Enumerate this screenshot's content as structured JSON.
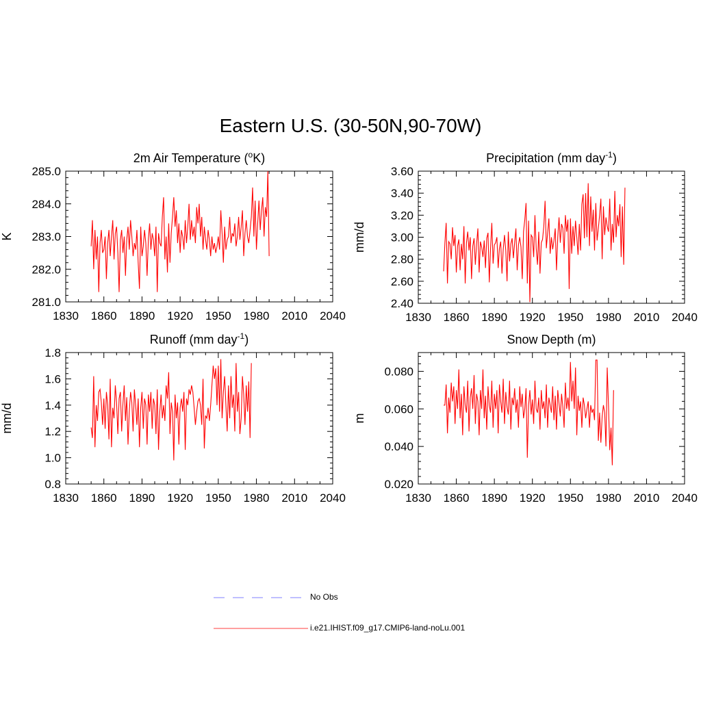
{
  "figure": {
    "title": "Eastern U.S. (30-50N,90-70W)"
  },
  "legend": {
    "items": [
      {
        "label": "No Obs",
        "color": "#9999ff",
        "style": "dashed"
      },
      {
        "label": "i.e21.IHIST.f09_g17.CMIP6-land-noLu.001",
        "color": "#ff6666",
        "style": "solid"
      }
    ]
  },
  "chart_data": [
    {
      "type": "line",
      "title": "2m Air Temperature (°K)",
      "title_main": "2m Air Temperature (",
      "title_sup": "o",
      "title_tail": "K)",
      "xlabel": "",
      "ylabel": "K",
      "xlim": [
        1830,
        2040
      ],
      "ylim": [
        281.0,
        285.0
      ],
      "xticks": [
        1830,
        1860,
        1890,
        1920,
        1950,
        1980,
        2010,
        2040
      ],
      "yticks": [
        281.0,
        282.0,
        283.0,
        284.0,
        285.0
      ],
      "ytick_labels": [
        "281.0",
        "282.0",
        "283.0",
        "284.0",
        "285.0"
      ],
      "grid": false,
      "series": [
        {
          "color": "#ff0000",
          "x_start": 1850,
          "x_step": 1,
          "values": [
            282.7,
            283.5,
            282.0,
            283.2,
            282.3,
            283.0,
            281.3,
            282.8,
            283.2,
            282.5,
            282.6,
            283.0,
            281.7,
            282.8,
            283.2,
            282.4,
            283.0,
            283.5,
            282.3,
            283.1,
            283.3,
            282.5,
            281.3,
            282.9,
            283.2,
            282.5,
            283.0,
            281.8,
            282.9,
            283.3,
            282.6,
            283.5,
            283.0,
            282.4,
            282.8,
            282.6,
            283.2,
            282.2,
            281.4,
            283.3,
            282.4,
            282.7,
            283.2,
            282.8,
            281.8,
            282.9,
            283.4,
            282.6,
            283.1,
            282.9,
            282.4,
            283.3,
            281.3,
            283.1,
            282.8,
            282.7,
            283.6,
            284.2,
            282.3,
            283.0,
            281.9,
            283.4,
            282.2,
            283.1,
            283.6,
            284.2,
            283.3,
            283.8,
            282.8,
            283.4,
            282.5,
            283.2,
            283.0,
            282.6,
            283.5,
            282.8,
            283.3,
            284.0,
            282.9,
            283.5,
            283.0,
            283.3,
            282.8,
            283.9,
            283.4,
            284.0,
            283.0,
            283.6,
            282.6,
            283.3,
            282.9,
            282.6,
            283.2,
            282.9,
            282.4,
            283.0,
            282.6,
            282.8,
            282.5,
            282.7,
            283.0,
            282.6,
            283.8,
            283.1,
            282.2,
            283.3,
            282.6,
            282.9,
            283.0,
            283.6,
            282.8,
            283.1,
            283.0,
            283.4,
            282.7,
            283.0,
            283.6,
            282.9,
            283.3,
            283.8,
            282.4,
            283.1,
            283.5,
            283.0,
            282.8,
            283.2,
            283.6,
            284.5,
            283.0,
            284.1,
            282.6,
            283.4,
            284.1,
            283.2,
            283.8,
            284.2,
            283.0,
            283.9,
            283.6,
            285.0,
            282.4
          ]
        }
      ]
    },
    {
      "type": "line",
      "title": "Precipitation (mm day-1)",
      "title_main": "Precipitation (mm day",
      "title_sup": "-1",
      "title_tail": ")",
      "xlabel": "",
      "ylabel": "mm/d",
      "xlim": [
        1830,
        2040
      ],
      "ylim": [
        2.4,
        3.6
      ],
      "xticks": [
        1830,
        1860,
        1890,
        1920,
        1950,
        1980,
        2010,
        2040
      ],
      "yticks": [
        2.4,
        2.6,
        2.8,
        3.0,
        3.2,
        3.4,
        3.6
      ],
      "ytick_labels": [
        "2.40",
        "2.60",
        "2.80",
        "3.00",
        "3.20",
        "3.40",
        "3.60"
      ],
      "grid": false,
      "series": [
        {
          "color": "#ff0000",
          "x_start": 1850,
          "x_step": 1,
          "values": [
            2.69,
            2.95,
            3.13,
            2.58,
            2.96,
            2.94,
            2.8,
            3.09,
            2.92,
            3.02,
            2.68,
            2.92,
            2.98,
            2.7,
            2.94,
            2.8,
            3.1,
            2.58,
            2.95,
            3.05,
            2.88,
            3.0,
            2.62,
            2.92,
            2.99,
            2.75,
            2.94,
            3.08,
            2.68,
            2.96,
            2.91,
            2.82,
            2.97,
            2.72,
            2.99,
            3.04,
            2.59,
            2.9,
            3.13,
            2.76,
            2.93,
            2.95,
            3.0,
            2.72,
            2.9,
            2.96,
            2.67,
            2.89,
            3.02,
            2.88,
            2.6,
            3.05,
            2.78,
            2.94,
            2.99,
            2.81,
            2.95,
            3.08,
            2.7,
            2.93,
            3.0,
            2.91,
            2.62,
            3.05,
            3.16,
            3.31,
            2.58,
            3.15,
            2.41,
            3.02,
            3.0,
            2.82,
            3.2,
            2.9,
            2.75,
            3.05,
            2.67,
            2.95,
            2.98,
            3.1,
            3.33,
            2.9,
            3.04,
            3.17,
            2.85,
            3.0,
            2.89,
            2.97,
            3.08,
            2.7,
            3.0,
            3.18,
            2.95,
            3.12,
            3.08,
            2.85,
            3.2,
            3.05,
            3.16,
            2.53,
            3.17,
            2.85,
            3.1,
            2.92,
            3.15,
            3.0,
            2.84,
            3.12,
            2.88,
            3.3,
            3.39,
            2.99,
            3.4,
            3.0,
            3.49,
            2.92,
            3.37,
            3.05,
            3.25,
            2.88,
            3.31,
            2.97,
            3.08,
            3.2,
            3.35,
            2.8,
            3.28,
            3.02,
            3.18,
            3.1,
            3.05,
            3.35,
            2.88,
            3.12,
            2.95,
            3.42,
            3.0,
            3.2,
            3.1,
            3.3,
            2.82,
            3.28,
            2.75,
            3.45
          ]
        }
      ]
    },
    {
      "type": "line",
      "title": "Runoff (mm day-1)",
      "title_main": "Runoff (mm day",
      "title_sup": "-1",
      "title_tail": ")",
      "xlabel": "",
      "ylabel": "mm/d",
      "xlim": [
        1830,
        2040
      ],
      "ylim": [
        0.8,
        1.8
      ],
      "xticks": [
        1830,
        1860,
        1890,
        1920,
        1950,
        1980,
        2010,
        2040
      ],
      "yticks": [
        0.8,
        1.0,
        1.2,
        1.4,
        1.6,
        1.8
      ],
      "ytick_labels": [
        "0.8",
        "1.0",
        "1.2",
        "1.4",
        "1.6",
        "1.8"
      ],
      "grid": false,
      "series": [
        {
          "color": "#ff0000",
          "x_start": 1850,
          "x_step": 1,
          "values": [
            1.23,
            1.15,
            1.62,
            1.08,
            1.4,
            1.28,
            1.5,
            1.52,
            1.42,
            1.25,
            1.45,
            1.22,
            1.5,
            1.4,
            1.14,
            1.6,
            1.08,
            1.38,
            1.3,
            1.55,
            1.42,
            1.18,
            1.45,
            1.5,
            1.2,
            1.41,
            1.55,
            1.28,
            1.46,
            1.1,
            1.35,
            1.5,
            1.42,
            1.2,
            1.52,
            1.4,
            1.25,
            1.45,
            1.08,
            1.38,
            1.5,
            1.22,
            1.45,
            1.4,
            1.1,
            1.48,
            1.35,
            1.5,
            1.22,
            1.45,
            1.4,
            1.18,
            1.52,
            1.06,
            1.35,
            1.48,
            1.3,
            1.4,
            1.28,
            1.55,
            1.45,
            1.65,
            1.18,
            1.42,
            1.35,
            0.98,
            1.48,
            1.3,
            1.42,
            1.1,
            1.38,
            1.45,
            1.35,
            1.5,
            1.06,
            1.45,
            1.4,
            1.52,
            1.48,
            1.55,
            1.5,
            1.38,
            1.25,
            1.35,
            1.43,
            1.45,
            1.4,
            1.25,
            1.6,
            1.07,
            1.32,
            1.3,
            1.38,
            1.28,
            1.4,
            1.55,
            1.7,
            1.6,
            1.68,
            1.4,
            1.7,
            1.35,
            1.75,
            1.3,
            1.5,
            1.62,
            1.4,
            1.2,
            1.55,
            1.3,
            1.62,
            1.38,
            1.48,
            1.2,
            1.72,
            1.35,
            1.5,
            1.18,
            1.3,
            1.62,
            1.48,
            1.25,
            1.55,
            1.35,
            1.58,
            1.15,
            1.72
          ]
        }
      ]
    },
    {
      "type": "line",
      "title": "Snow Depth (m)",
      "title_main": "Snow Depth (m)",
      "title_sup": "",
      "title_tail": "",
      "xlabel": "",
      "ylabel": "m",
      "xlim": [
        1830,
        2040
      ],
      "ylim": [
        0.02,
        0.09
      ],
      "xticks": [
        1830,
        1860,
        1890,
        1920,
        1950,
        1980,
        2010,
        2040
      ],
      "yticks": [
        0.02,
        0.04,
        0.06,
        0.08
      ],
      "ytick_labels": [
        "0.020",
        "0.040",
        "0.060",
        "0.080"
      ],
      "grid": false,
      "series": [
        {
          "color": "#ff0000",
          "x_start": 1850,
          "x_step": 1,
          "values": [
            0.062,
            0.062,
            0.073,
            0.047,
            0.066,
            0.058,
            0.074,
            0.064,
            0.072,
            0.052,
            0.07,
            0.06,
            0.081,
            0.055,
            0.068,
            0.046,
            0.072,
            0.062,
            0.058,
            0.075,
            0.048,
            0.066,
            0.071,
            0.06,
            0.078,
            0.052,
            0.068,
            0.064,
            0.046,
            0.07,
            0.06,
            0.081,
            0.055,
            0.067,
            0.049,
            0.072,
            0.062,
            0.058,
            0.075,
            0.05,
            0.068,
            0.06,
            0.07,
            0.047,
            0.073,
            0.064,
            0.058,
            0.076,
            0.052,
            0.069,
            0.061,
            0.057,
            0.075,
            0.049,
            0.066,
            0.062,
            0.071,
            0.058,
            0.065,
            0.05,
            0.072,
            0.061,
            0.068,
            0.055,
            0.06,
            0.071,
            0.034,
            0.062,
            0.07,
            0.057,
            0.065,
            0.052,
            0.075,
            0.06,
            0.058,
            0.066,
            0.049,
            0.07,
            0.06,
            0.064,
            0.055,
            0.073,
            0.05,
            0.066,
            0.062,
            0.058,
            0.072,
            0.054,
            0.067,
            0.049,
            0.07,
            0.063,
            0.056,
            0.068,
            0.061,
            0.05,
            0.074,
            0.06,
            0.066,
            0.059,
            0.085,
            0.064,
            0.075,
            0.06,
            0.082,
            0.046,
            0.067,
            0.059,
            0.064,
            0.05,
            0.066,
            0.062,
            0.055,
            0.06,
            0.064,
            0.05,
            0.062,
            0.058,
            0.06,
            0.054,
            0.086,
            0.086,
            0.043,
            0.058,
            0.042,
            0.056,
            0.062,
            0.058,
            0.04,
            0.082,
            0.062,
            0.038,
            0.05,
            0.03,
            0.07
          ]
        }
      ]
    }
  ]
}
